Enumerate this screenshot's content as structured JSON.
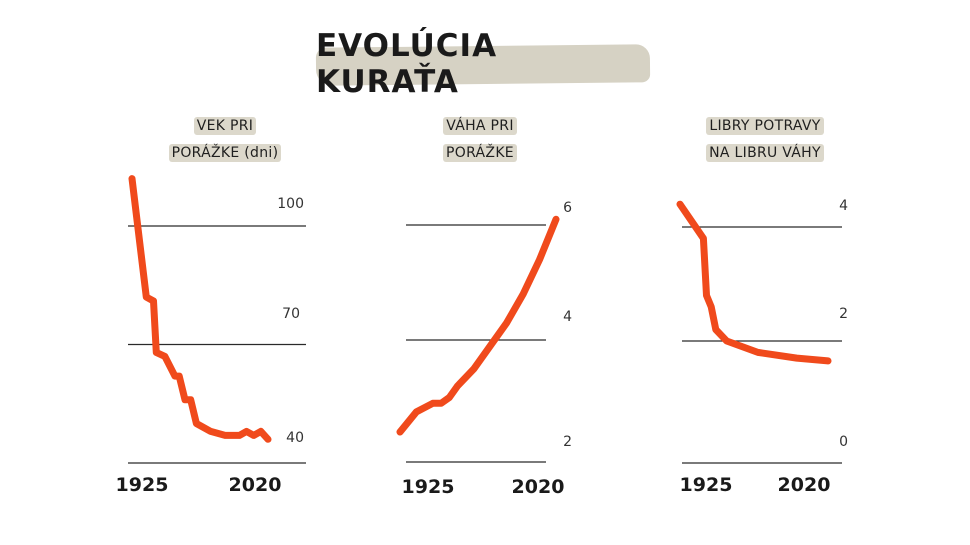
{
  "title": "EVOLÚCIA KURAŤA",
  "colors": {
    "line": "#f04a1c",
    "grid": "#2a2a2a",
    "highlight": "#d6d2c4"
  },
  "chart_data": [
    {
      "type": "line",
      "title_lines": [
        "VEK PRI",
        "PORÁŽKE (dni)"
      ],
      "x": [
        1925,
        1935,
        1940,
        1942,
        1948,
        1955,
        1958,
        1962,
        1966,
        1970,
        1980,
        1990,
        2000,
        2005,
        2010,
        2015,
        2020
      ],
      "values": [
        112,
        82,
        81,
        68,
        67,
        62,
        62,
        56,
        56,
        50,
        48,
        47,
        47,
        48,
        47,
        48,
        46
      ],
      "x_ticks": [
        "1925",
        "2020"
      ],
      "y_ticks": [
        "40",
        "70",
        "100"
      ],
      "gridlines": [
        40,
        70,
        100
      ],
      "ylim": [
        40,
        112
      ]
    },
    {
      "type": "line",
      "title_lines": [
        "VÁHA PRI",
        "PORÁŽKE"
      ],
      "x": [
        1925,
        1935,
        1945,
        1950,
        1955,
        1960,
        1970,
        1980,
        1990,
        2000,
        2010,
        2020
      ],
      "values": [
        2.4,
        2.75,
        2.9,
        2.9,
        3.0,
        3.2,
        3.5,
        3.9,
        4.3,
        4.8,
        5.4,
        6.1
      ],
      "x_ticks": [
        "1925",
        "2020"
      ],
      "y_ticks": [
        "2",
        "4",
        "6"
      ],
      "gridlines": [
        2,
        4,
        6
      ],
      "ylim": [
        1.7,
        6.3
      ]
    },
    {
      "type": "line",
      "title_lines": [
        "LIBRY POTRAVY",
        "NA LIBRU VÁHY"
      ],
      "x": [
        1925,
        1940,
        1942,
        1945,
        1948,
        1955,
        1975,
        2000,
        2020
      ],
      "values": [
        4.4,
        3.8,
        2.8,
        2.6,
        2.2,
        2.0,
        1.8,
        1.7,
        1.65
      ],
      "x_ticks": [
        "1925",
        "2020"
      ],
      "y_ticks": [
        "0",
        "2",
        "4"
      ],
      "gridlines": [
        0,
        2,
        4
      ],
      "ylim": [
        0,
        4.6
      ]
    }
  ]
}
